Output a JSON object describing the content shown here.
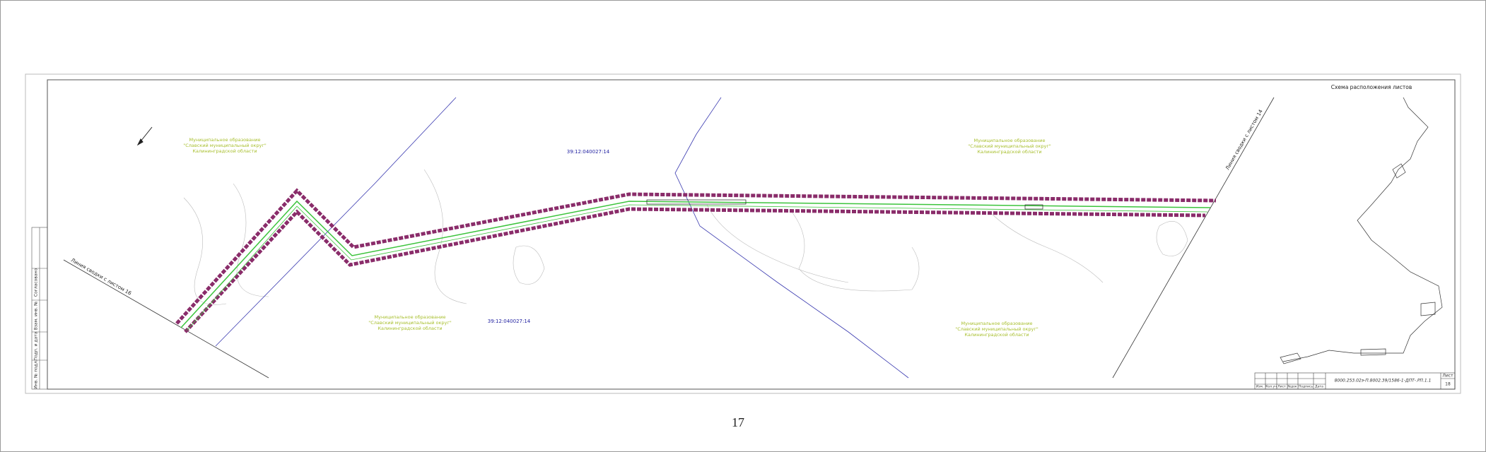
{
  "sheet_number": "17",
  "layout_scheme_title": "Схема расположения листов",
  "municipal_labels": [
    [
      "Муниципальное образование",
      "\"Славский муниципальный округ\"",
      "Калининградской области"
    ],
    [
      "Муниципальное образование",
      "\"Славский муниципальный округ\"",
      "Калининградской области"
    ],
    [
      "Муниципальное образование",
      "\"Славский муниципальный округ\"",
      "Калининградской области"
    ],
    [
      "Муниципальное образование",
      "\"Славский муниципальный округ\"",
      "Калининградской области"
    ]
  ],
  "cadastral_labels": [
    "39:12:040027:14",
    "39:12:040027:14"
  ],
  "match_lines": [
    "Линия сводки с листом 16",
    "Линия сводки с листом 14"
  ],
  "stamp": [
    "Согласовано",
    "Взам. инв. №",
    "Подп. и дата",
    "Инв. № подл."
  ],
  "title_block": {
    "headers": [
      "Изм.",
      "Кол.уч",
      "Лист",
      "№док",
      "Подпись",
      "Дата"
    ],
    "designation": "8000.253.02э-П.8002.39/1586-1-ДПТ-.РП.1.1",
    "sheet_label": "Лист",
    "sheet": "18"
  }
}
